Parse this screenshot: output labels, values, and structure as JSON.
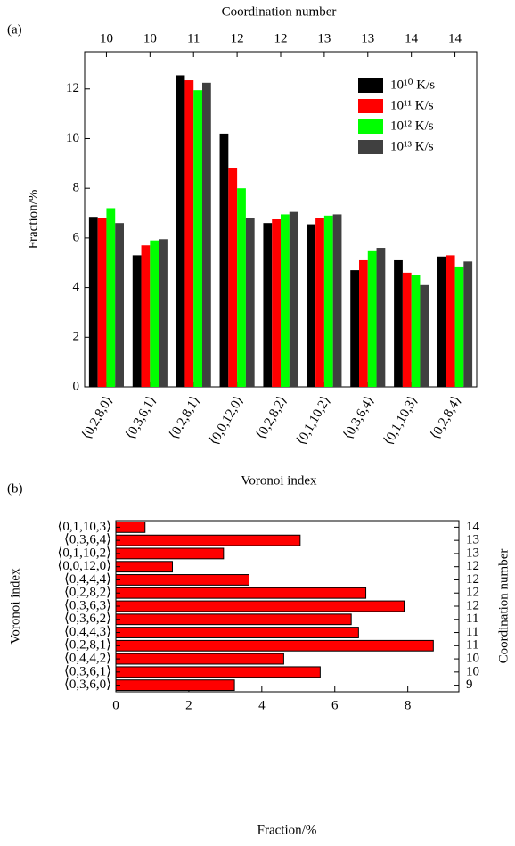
{
  "chart_data": [
    {
      "type": "bar",
      "panel_label": "(a)",
      "top_label": "Coordination number",
      "x_label": "Voronoi index",
      "y_label": "Fraction/%",
      "categories": [
        "⟨0,2,8,0⟩",
        "⟨0,3,6,1⟩",
        "⟨0,2,8,1⟩",
        "⟨0,0,12,0⟩",
        "⟨0,2,8,2⟩",
        "⟨0,1,10,2⟩",
        "⟨0,3,6,4⟩",
        "⟨0,1,10,3⟩",
        "⟨0,2,8,4⟩"
      ],
      "top_categories": [
        10,
        10,
        11,
        12,
        12,
        13,
        13,
        14,
        14
      ],
      "series": [
        {
          "name": "10¹⁰ K/s",
          "color": "#000000",
          "values": [
            6.85,
            5.3,
            12.55,
            10.2,
            6.6,
            6.55,
            4.7,
            5.1,
            5.25
          ]
        },
        {
          "name": "10¹¹ K/s",
          "color": "#ff0000",
          "values": [
            6.8,
            5.7,
            12.35,
            8.8,
            6.75,
            6.8,
            5.1,
            4.6,
            5.3
          ]
        },
        {
          "name": "10¹² K/s",
          "color": "#00ff00",
          "values": [
            7.2,
            5.9,
            11.95,
            8.0,
            6.95,
            6.9,
            5.5,
            4.5,
            4.85
          ]
        },
        {
          "name": "10¹³ K/s",
          "color": "#404040",
          "values": [
            6.6,
            5.95,
            12.25,
            6.8,
            7.05,
            6.95,
            5.6,
            4.1,
            5.05
          ]
        }
      ],
      "ylim": [
        0,
        13.5
      ],
      "yticks": [
        0,
        2,
        4,
        6,
        8,
        10,
        12
      ],
      "legend": "upper-right"
    },
    {
      "type": "hbar",
      "panel_label": "(b)",
      "x_label": "Fraction/%",
      "y_label": "Voronoi index",
      "y2_label": "Coordination number",
      "categories": [
        "⟨0,3,6,0⟩",
        "⟨0,3,6,1⟩",
        "⟨0,4,4,2⟩",
        "⟨0,2,8,1⟩",
        "⟨0,4,4,3⟩",
        "⟨0,3,6,2⟩",
        "⟨0,3,6,3⟩",
        "⟨0,2,8,2⟩",
        "⟨0,4,4,4⟩",
        "⟨0,0,12,0⟩",
        "⟨0,1,10,2⟩",
        "⟨0,3,6,4⟩",
        "⟨0,1,10,3⟩"
      ],
      "right_categories": [
        9,
        10,
        10,
        11,
        11,
        11,
        12,
        12,
        12,
        12,
        13,
        13,
        14
      ],
      "values": [
        3.25,
        5.6,
        4.6,
        8.7,
        6.65,
        6.45,
        7.9,
        6.85,
        3.65,
        1.55,
        2.95,
        5.05,
        0.8
      ],
      "color": "#ff0000",
      "xlim": [
        0,
        9.4
      ],
      "xticks": [
        0,
        2,
        4,
        6,
        8
      ]
    }
  ]
}
